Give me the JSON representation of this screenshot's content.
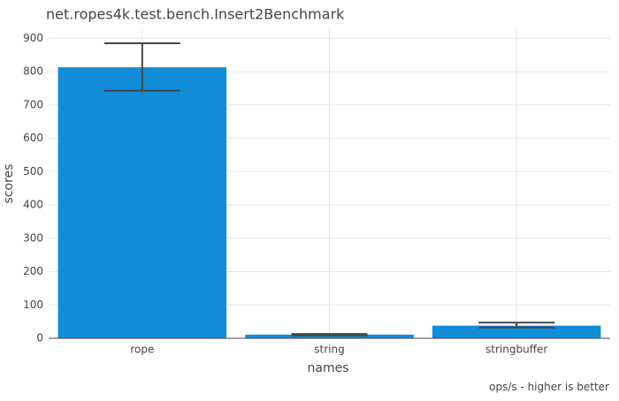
{
  "chart_data": {
    "type": "bar",
    "title": "net.ropes4k.test.bench.Insert2Benchmark",
    "xlabel": "names",
    "ylabel": "scores",
    "annotation": "ops/s - higher is better",
    "categories": [
      "rope",
      "string",
      "stringbuffer"
    ],
    "values": [
      813,
      11,
      38
    ],
    "error_bars": [
      {
        "low": 743,
        "high": 885
      },
      {
        "low": 9,
        "high": 13
      },
      {
        "low": 32,
        "high": 47
      }
    ],
    "ylim": [
      0,
      930
    ],
    "yticks": [
      0,
      100,
      200,
      300,
      400,
      500,
      600,
      700,
      800,
      900
    ],
    "grid": true,
    "bar_color": "#118dd8",
    "error_bar_color": "#444444",
    "grid_color": "#e6e6e6",
    "axis_color": "#444444"
  }
}
